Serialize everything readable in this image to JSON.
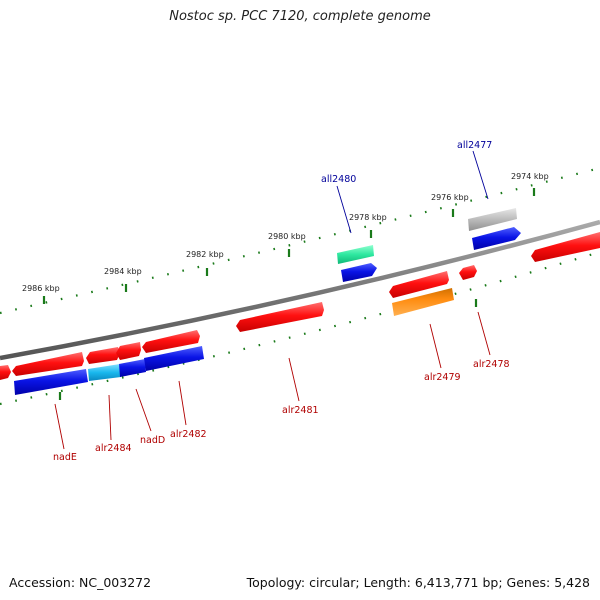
{
  "title": "Nostoc sp. PCC 7120, complete genome",
  "footer": {
    "accession": "Accession: NC_003272",
    "summary": "Topology: circular; Length: 6,413,771 bp; Genes: 5,428"
  },
  "kbp_labels": [
    "2986 kbp",
    "2984 kbp",
    "2982 kbp",
    "2980 kbp",
    "2978 kbp",
    "2976 kbp",
    "2974 kbp"
  ],
  "genes": [
    {
      "name": "all2480",
      "strand": "minus",
      "label_color": "#00009a"
    },
    {
      "name": "all2477",
      "strand": "minus",
      "label_color": "#00009a"
    },
    {
      "name": "nadE",
      "strand": "plus",
      "label_color": "#b00000"
    },
    {
      "name": "alr2484",
      "strand": "plus",
      "label_color": "#b00000"
    },
    {
      "name": "nadD",
      "strand": "plus",
      "label_color": "#b00000"
    },
    {
      "name": "alr2482",
      "strand": "plus",
      "label_color": "#b00000"
    },
    {
      "name": "alr2481",
      "strand": "plus",
      "label_color": "#b00000"
    },
    {
      "name": "alr2479",
      "strand": "plus",
      "label_color": "#b00000"
    },
    {
      "name": "alr2478",
      "strand": "plus",
      "label_color": "#b00000"
    }
  ],
  "colors": {
    "forward_cds": "#ff1010",
    "reverse_cds": "#0a14e6",
    "backbone": "#777777",
    "ticks": "#1a7a1a",
    "teal_feature": "#2ee8a0",
    "cyan_feature": "#19b8ee",
    "orange_feature": "#ff8c10",
    "gray_feature": "#bbbbbb"
  }
}
